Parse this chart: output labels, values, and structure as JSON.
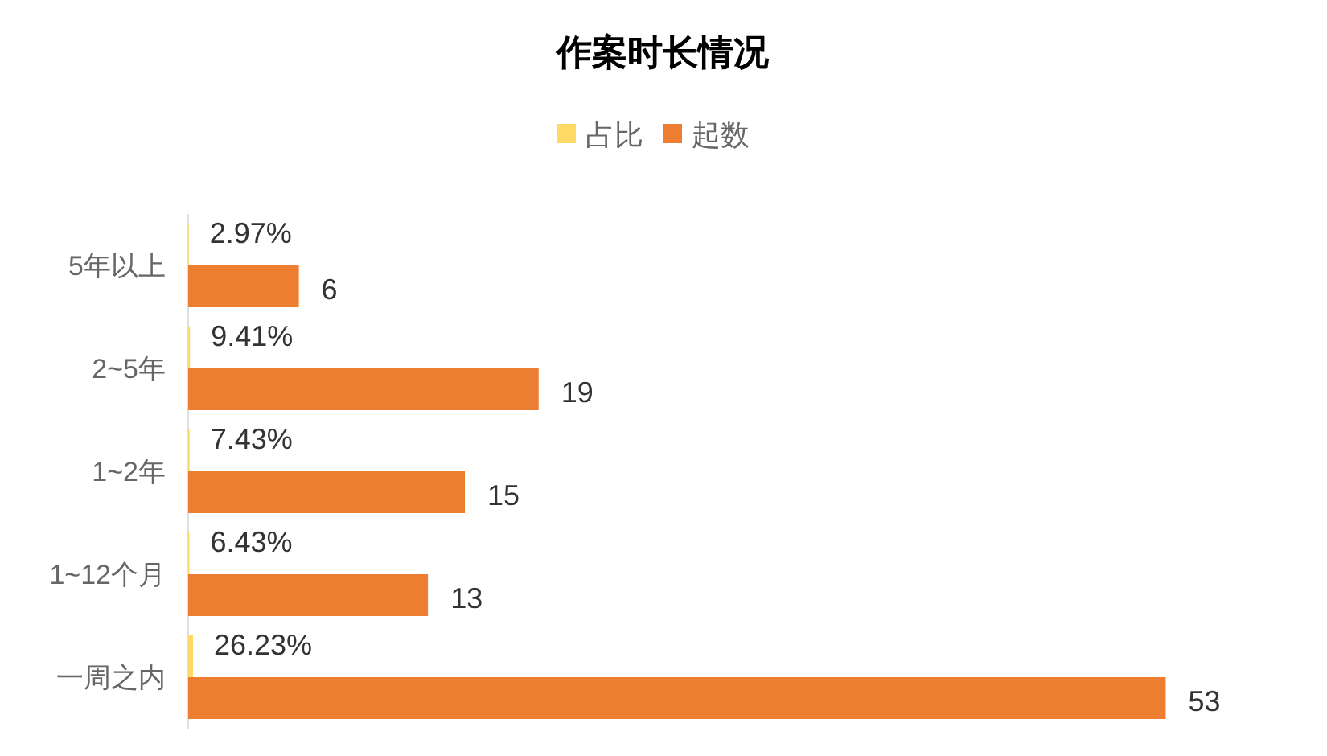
{
  "chart_data": {
    "type": "bar",
    "orientation": "horizontal",
    "title": "作案时长情况",
    "categories": [
      "5年以上",
      "2~5年",
      "1~2年",
      "1~12个月",
      "一周之内"
    ],
    "series": [
      {
        "name": "占比",
        "color": "#ffd966",
        "values": [
          0.0297,
          0.0941,
          0.0743,
          0.0643,
          0.2623
        ],
        "value_labels": [
          "2.97%",
          "9.41%",
          "7.43%",
          "6.43%",
          "26.23%"
        ]
      },
      {
        "name": "起数",
        "color": "#ed7d31",
        "values": [
          6,
          19,
          15,
          13,
          53
        ],
        "value_labels": [
          "6",
          "19",
          "15",
          "13",
          "53"
        ]
      }
    ],
    "legend": "top"
  }
}
